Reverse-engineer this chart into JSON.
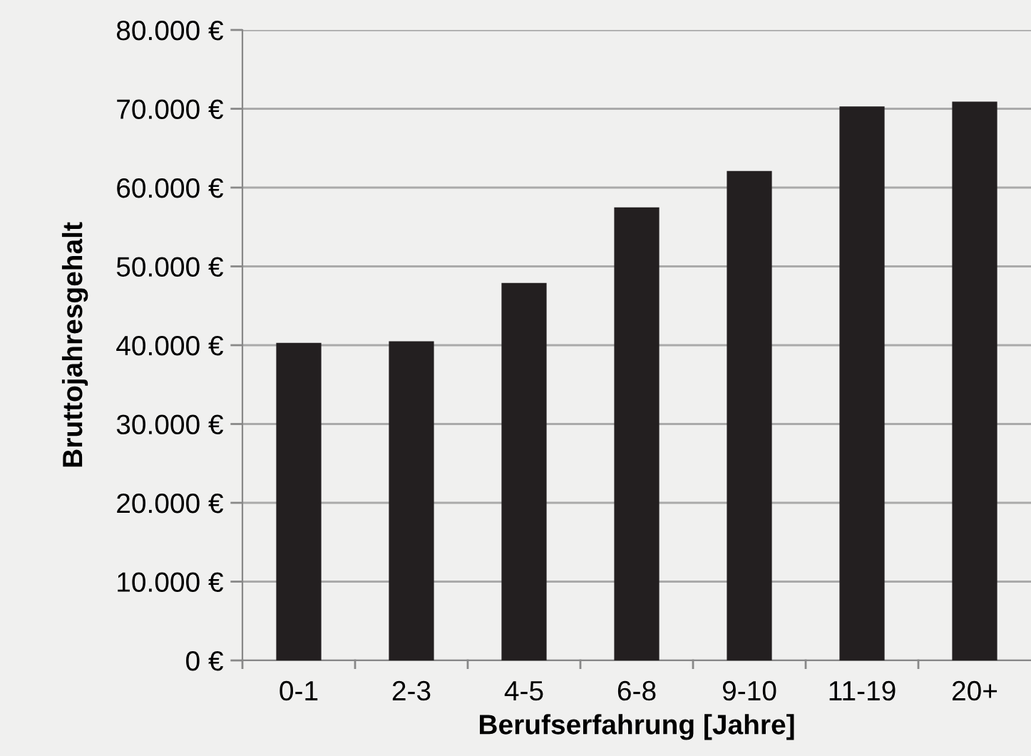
{
  "chart_data": {
    "type": "bar",
    "xlabel": "Berufserfahrung [Jahre]",
    "ylabel": "Bruttojahresgehalt",
    "categories": [
      "0-1",
      "2-3",
      "4-5",
      "6-8",
      "9-10",
      "11-19",
      "20+"
    ],
    "values": [
      40300,
      40500,
      47900,
      57500,
      62100,
      70300,
      70900
    ],
    "color": "#231f20",
    "ylim": [
      0,
      80000
    ],
    "yticks": [
      {
        "value": 0,
        "label": "0 €"
      },
      {
        "value": 10000,
        "label": "10.000 €"
      },
      {
        "value": 20000,
        "label": "20.000 €"
      },
      {
        "value": 30000,
        "label": "30.000 €"
      },
      {
        "value": 40000,
        "label": "40.000 €"
      },
      {
        "value": 50000,
        "label": "50.000 €"
      },
      {
        "value": 60000,
        "label": "60.000 €"
      },
      {
        "value": 70000,
        "label": "70.000 €"
      },
      {
        "value": 80000,
        "label": "80.000 €"
      }
    ],
    "grid": "y",
    "legend": false
  }
}
